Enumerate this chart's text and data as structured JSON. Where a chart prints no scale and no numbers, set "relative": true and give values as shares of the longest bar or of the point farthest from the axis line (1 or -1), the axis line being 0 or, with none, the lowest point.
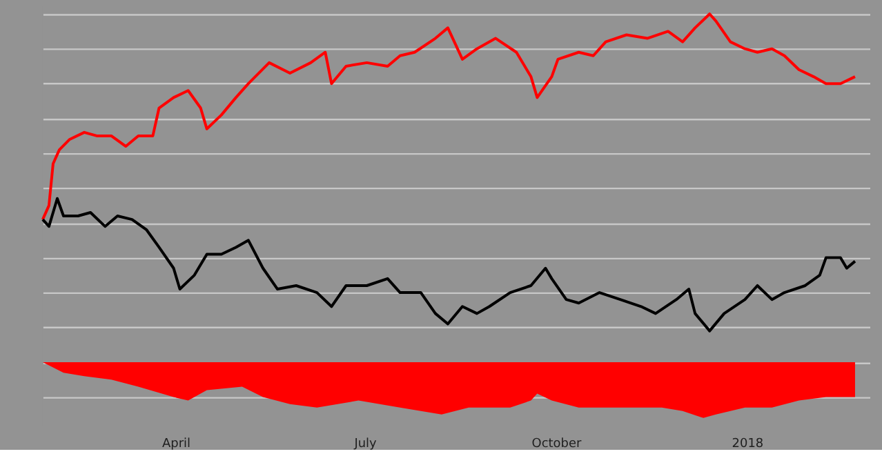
{
  "chart_data": {
    "type": "line",
    "relative": true,
    "grid": "y",
    "legend": false,
    "xlim": [
      "2017-01-27",
      "2018-03-01"
    ],
    "xticks": [
      {
        "value": "2017-04-01",
        "label": "April"
      },
      {
        "value": "2017-07-01",
        "label": "July"
      },
      {
        "value": "2017-10-01",
        "label": "October"
      },
      {
        "value": "2018-01-01",
        "label": "2018"
      }
    ],
    "series": [
      {
        "type": "line",
        "color": "#ff0000",
        "x": [
          "2017-01-27",
          "2017-01-30",
          "2017-02-01",
          "2017-02-04",
          "2017-02-09",
          "2017-02-16",
          "2017-02-22",
          "2017-03-01",
          "2017-03-08",
          "2017-03-14",
          "2017-03-21",
          "2017-03-24",
          "2017-03-31",
          "2017-04-07",
          "2017-04-13",
          "2017-04-16",
          "2017-04-23",
          "2017-04-30",
          "2017-05-06",
          "2017-05-16",
          "2017-05-26",
          "2017-06-05",
          "2017-06-12",
          "2017-06-15",
          "2017-06-22",
          "2017-07-02",
          "2017-07-12",
          "2017-07-18",
          "2017-07-25",
          "2017-08-04",
          "2017-08-10",
          "2017-08-17",
          "2017-08-24",
          "2017-09-02",
          "2017-09-12",
          "2017-09-19",
          "2017-09-22",
          "2017-09-29",
          "2017-10-02",
          "2017-10-12",
          "2017-10-19",
          "2017-10-25",
          "2017-11-04",
          "2017-11-14",
          "2017-11-24",
          "2017-12-01",
          "2017-12-07",
          "2017-12-14",
          "2017-12-17",
          "2017-12-24",
          "2017-12-31",
          "2018-01-06",
          "2018-01-13",
          "2018-01-19",
          "2018-01-26",
          "2018-02-02",
          "2018-02-08",
          "2018-02-15",
          "2018-02-22"
        ],
        "values": [
          0.41,
          0.45,
          0.57,
          0.61,
          0.64,
          0.66,
          0.65,
          0.65,
          0.62,
          0.65,
          0.65,
          0.73,
          0.76,
          0.78,
          0.73,
          0.67,
          0.71,
          0.76,
          0.8,
          0.86,
          0.83,
          0.86,
          0.89,
          0.8,
          0.85,
          0.86,
          0.85,
          0.88,
          0.89,
          0.93,
          0.96,
          0.87,
          0.9,
          0.93,
          0.89,
          0.82,
          0.76,
          0.82,
          0.87,
          0.89,
          0.88,
          0.92,
          0.94,
          0.93,
          0.95,
          0.92,
          0.96,
          1.0,
          0.98,
          0.92,
          0.9,
          0.89,
          0.9,
          0.88,
          0.84,
          0.82,
          0.8,
          0.8,
          0.82
        ]
      },
      {
        "type": "line",
        "color": "#000000",
        "x": [
          "2017-01-27",
          "2017-01-30",
          "2017-02-03",
          "2017-02-06",
          "2017-02-13",
          "2017-02-19",
          "2017-02-26",
          "2017-03-04",
          "2017-03-11",
          "2017-03-18",
          "2017-03-24",
          "2017-03-31",
          "2017-04-03",
          "2017-04-10",
          "2017-04-16",
          "2017-04-23",
          "2017-04-30",
          "2017-05-06",
          "2017-05-13",
          "2017-05-20",
          "2017-05-29",
          "2017-06-08",
          "2017-06-15",
          "2017-06-22",
          "2017-07-02",
          "2017-07-12",
          "2017-07-18",
          "2017-07-28",
          "2017-08-04",
          "2017-08-10",
          "2017-08-17",
          "2017-08-24",
          "2017-08-30",
          "2017-09-09",
          "2017-09-19",
          "2017-09-26",
          "2017-09-29",
          "2017-10-06",
          "2017-10-12",
          "2017-10-22",
          "2017-11-01",
          "2017-11-11",
          "2017-11-18",
          "2017-11-28",
          "2017-12-04",
          "2017-12-07",
          "2017-12-14",
          "2017-12-21",
          "2017-12-31",
          "2018-01-06",
          "2018-01-13",
          "2018-01-19",
          "2018-01-29",
          "2018-02-05",
          "2018-02-08",
          "2018-02-15",
          "2018-02-18",
          "2018-02-22"
        ],
        "values": [
          0.41,
          0.39,
          0.47,
          0.42,
          0.42,
          0.43,
          0.39,
          0.42,
          0.41,
          0.38,
          0.33,
          0.27,
          0.21,
          0.25,
          0.31,
          0.31,
          0.33,
          0.35,
          0.27,
          0.21,
          0.22,
          0.2,
          0.16,
          0.22,
          0.22,
          0.24,
          0.2,
          0.2,
          0.14,
          0.11,
          0.16,
          0.14,
          0.16,
          0.2,
          0.22,
          0.27,
          0.24,
          0.18,
          0.17,
          0.2,
          0.18,
          0.16,
          0.14,
          0.18,
          0.21,
          0.14,
          0.09,
          0.14,
          0.18,
          0.22,
          0.18,
          0.2,
          0.22,
          0.25,
          0.3,
          0.3,
          0.27,
          0.29
        ]
      },
      {
        "type": "area",
        "color": "#ff0000",
        "x": [
          "2017-01-27",
          "2017-02-06",
          "2017-02-16",
          "2017-03-01",
          "2017-03-14",
          "2017-03-31",
          "2017-04-07",
          "2017-04-16",
          "2017-05-03",
          "2017-05-13",
          "2017-05-26",
          "2017-06-08",
          "2017-06-28",
          "2017-07-18",
          "2017-08-07",
          "2017-08-20",
          "2017-09-09",
          "2017-09-19",
          "2017-09-22",
          "2017-09-29",
          "2017-10-12",
          "2017-11-01",
          "2017-11-21",
          "2017-12-01",
          "2017-12-11",
          "2017-12-17",
          "2017-12-31",
          "2018-01-13",
          "2018-01-26",
          "2018-02-08",
          "2018-02-22"
        ],
        "values": [
          0,
          -0.03,
          -0.04,
          -0.05,
          -0.07,
          -0.1,
          -0.11,
          -0.08,
          -0.07,
          -0.1,
          -0.12,
          -0.13,
          -0.11,
          -0.13,
          -0.15,
          -0.13,
          -0.13,
          -0.11,
          -0.09,
          -0.11,
          -0.13,
          -0.13,
          -0.13,
          -0.14,
          -0.16,
          -0.15,
          -0.13,
          -0.13,
          -0.11,
          -0.1,
          -0.1
        ]
      }
    ]
  }
}
